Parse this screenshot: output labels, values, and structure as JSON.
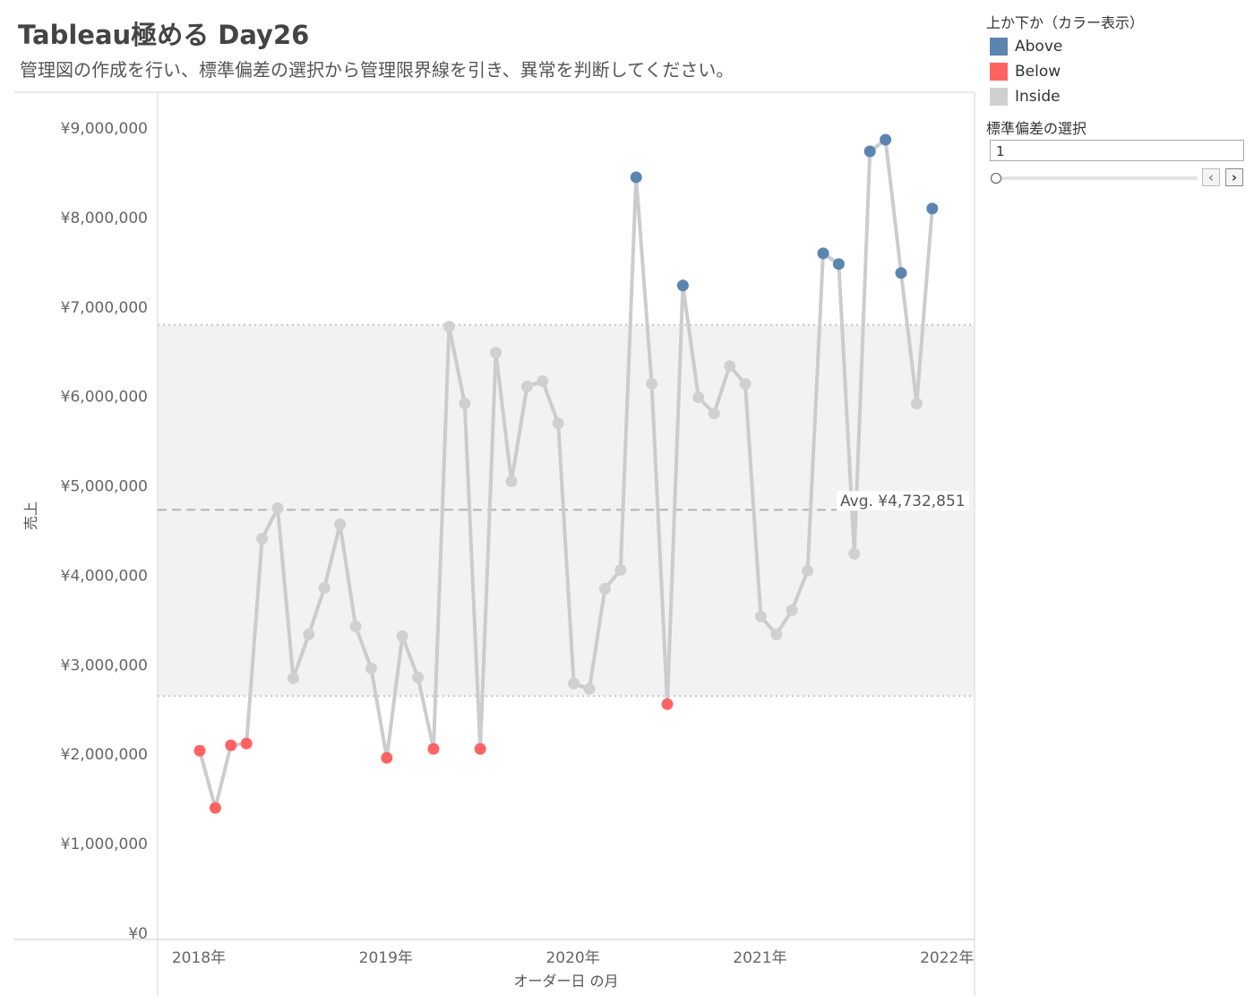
{
  "title": "Tableau極める Day26",
  "subtitle": "管理図の作成を行い、標準偏差の選択から管理限界線を引き、異常を判断してください。",
  "legend": {
    "title": "上か下か（カラー表示）",
    "items": [
      {
        "label": "Above",
        "color": "#5b84b1"
      },
      {
        "label": "Below",
        "color": "#ff6361"
      },
      {
        "label": "Inside",
        "color": "#d0d0d0"
      }
    ]
  },
  "parameter": {
    "title": "標準偏差の選択",
    "value": "1",
    "prev_icon": "chevron-left-icon",
    "next_icon": "chevron-right-icon"
  },
  "chart_data": {
    "type": "line",
    "title": "",
    "xlabel": "オーダー日 の月",
    "ylabel": "売上",
    "ylim": [
      0,
      9000000
    ],
    "yticks": [
      0,
      1000000,
      2000000,
      3000000,
      4000000,
      5000000,
      6000000,
      7000000,
      8000000,
      9000000
    ],
    "ytick_labels": [
      "¥0",
      "¥1,000,000",
      "¥2,000,000",
      "¥3,000,000",
      "¥4,000,000",
      "¥5,000,000",
      "¥6,000,000",
      "¥7,000,000",
      "¥8,000,000",
      "¥9,000,000"
    ],
    "xticks": [
      "2018年",
      "2019年",
      "2020年",
      "2021年",
      "2022年"
    ],
    "x_start": "2018-01",
    "average": 4732851,
    "average_label": "Avg. ¥4,732,851",
    "upper_limit": 6800000,
    "lower_limit": 2650000,
    "band_color": "#f2f2f2",
    "line_color": "#cccccc",
    "grid": false,
    "series": [
      {
        "values": [
          2040000,
          1400000,
          2100000,
          2120000,
          4410000,
          4750000,
          2850000,
          3340000,
          3860000,
          4570000,
          3430000,
          2960000,
          1960000,
          3320000,
          2860000,
          2060000,
          6780000,
          5920000,
          2060000,
          6490000,
          5050000,
          6110000,
          6170000,
          5700000,
          2790000,
          2730000,
          3850000,
          4060000,
          8450000,
          6140000,
          2560000,
          7240000,
          5990000,
          5810000,
          6340000,
          6140000,
          3540000,
          3340000,
          3610000,
          4050000,
          7600000,
          7480000,
          4240000,
          8740000,
          8870000,
          7380000,
          5920000,
          8100000
        ],
        "status": [
          "Below",
          "Below",
          "Below",
          "Below",
          "Inside",
          "Inside",
          "Inside",
          "Inside",
          "Inside",
          "Inside",
          "Inside",
          "Inside",
          "Below",
          "Inside",
          "Inside",
          "Below",
          "Inside",
          "Inside",
          "Below",
          "Inside",
          "Inside",
          "Inside",
          "Inside",
          "Inside",
          "Inside",
          "Inside",
          "Inside",
          "Inside",
          "Above",
          "Inside",
          "Below",
          "Above",
          "Inside",
          "Inside",
          "Inside",
          "Inside",
          "Inside",
          "Inside",
          "Inside",
          "Inside",
          "Above",
          "Above",
          "Inside",
          "Above",
          "Above",
          "Above",
          "Inside",
          "Above"
        ]
      }
    ]
  }
}
